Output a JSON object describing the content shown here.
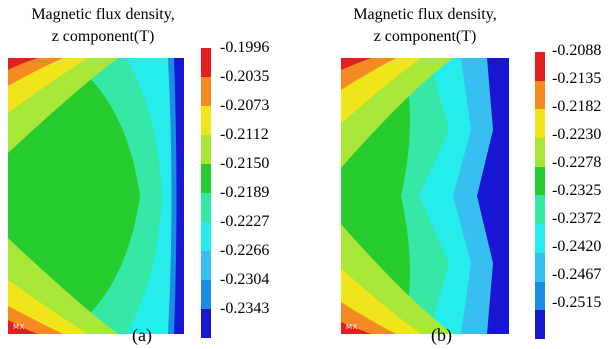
{
  "colors": [
    "#e31e1e",
    "#f58a22",
    "#f0e41a",
    "#a8e638",
    "#27cc2e",
    "#35e8a6",
    "#27ecec",
    "#36bfef",
    "#1a8ce2",
    "#1818d4"
  ],
  "panels": [
    {
      "id": "a",
      "title_line1": "Magnetic flux density,",
      "title_line2": "z component(T)",
      "legend_values": [
        "-0.1996",
        "-0.2035",
        "-0.2073",
        "-0.2112",
        "-0.2150",
        "-0.2189",
        "-0.2227",
        "-0.2266",
        "-0.2304",
        "-0.2343"
      ],
      "caption": "(a)",
      "logo": "MX"
    },
    {
      "id": "b",
      "title_line1": "Magnetic flux density,",
      "title_line2": "z component(T)",
      "legend_values": [
        "-0.2088",
        "-0.2135",
        "-0.2182",
        "-0.2230",
        "-0.2278",
        "-0.2325",
        "-0.2372",
        "-0.2420",
        "-0.2467",
        "-0.2515"
      ],
      "caption": "(b)",
      "logo": "MX"
    }
  ]
}
